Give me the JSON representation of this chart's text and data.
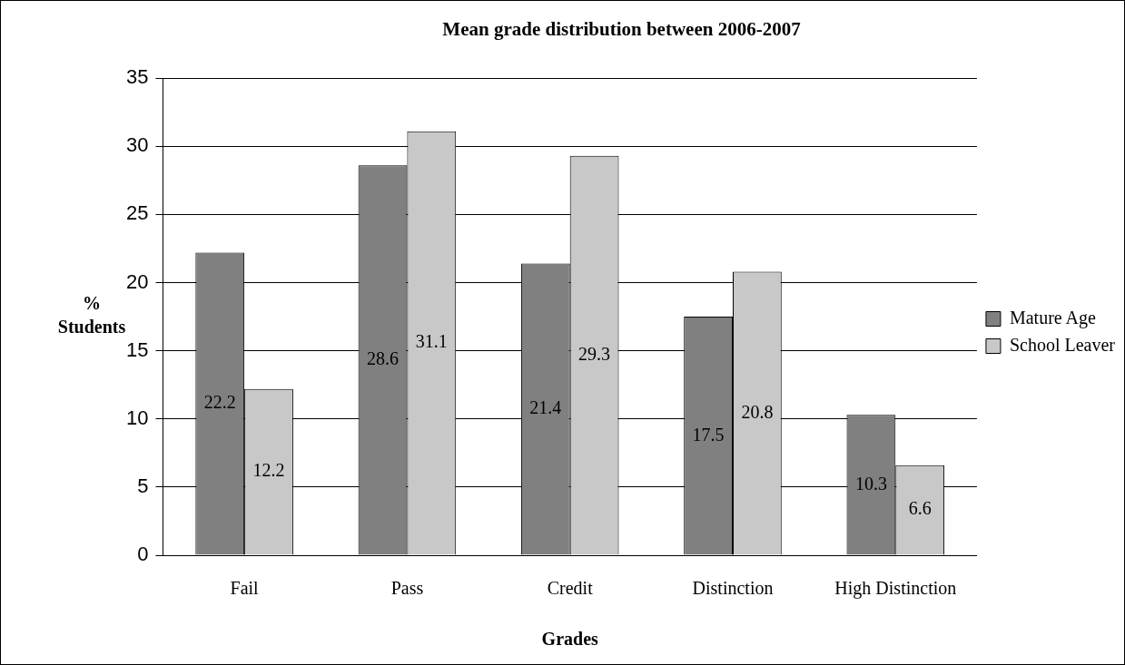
{
  "chart_data": {
    "type": "bar",
    "title": "Mean grade distribution between 2006-2007",
    "xlabel": "Grades",
    "ylabel": "% Students",
    "categories": [
      "Fail",
      "Pass",
      "Credit",
      "Distinction",
      "High Distinction"
    ],
    "series": [
      {
        "name": "Mature Age",
        "color": "#808080",
        "values": [
          22.2,
          28.6,
          21.4,
          17.5,
          10.3
        ]
      },
      {
        "name": "School Leaver",
        "color": "#c8c8c8",
        "values": [
          12.2,
          31.1,
          29.3,
          20.8,
          6.6
        ]
      }
    ],
    "ylim": [
      0,
      35
    ],
    "yticks": [
      0,
      5,
      10,
      15,
      20,
      25,
      30,
      35
    ],
    "grid": "y",
    "legend": "right",
    "data_labels": true
  }
}
